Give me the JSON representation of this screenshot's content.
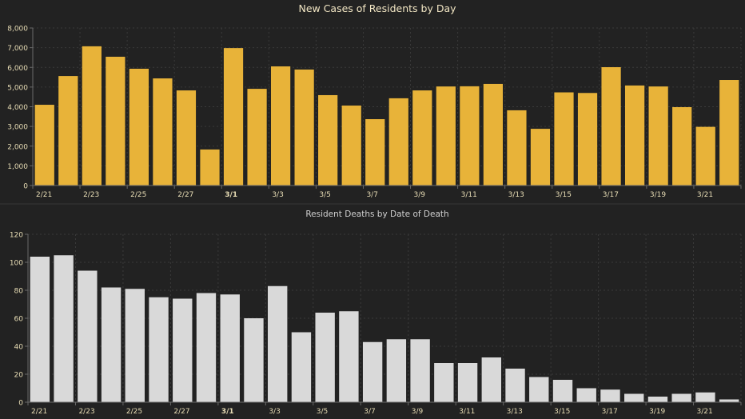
{
  "chart_data": [
    {
      "type": "bar",
      "title": "New Cases of Residents by Day",
      "xlabel": "",
      "ylabel": "",
      "ylim": [
        0,
        8000
      ],
      "yticks": [
        "0",
        "1,000",
        "2,000",
        "3,000",
        "4,000",
        "5,000",
        "6,000",
        "7,000",
        "8,000"
      ],
      "ytick_values": [
        0,
        1000,
        2000,
        3000,
        4000,
        5000,
        6000,
        7000,
        8000
      ],
      "grid": true,
      "bar_color": "#E8B339",
      "categories": [
        "2/21",
        "2/22",
        "2/23",
        "2/24",
        "2/25",
        "2/26",
        "2/27",
        "2/28",
        "3/1",
        "3/2",
        "3/3",
        "3/4",
        "3/5",
        "3/6",
        "3/7",
        "3/8",
        "3/9",
        "3/10",
        "3/11",
        "3/12",
        "3/13",
        "3/14",
        "3/15",
        "3/16",
        "3/17",
        "3/18",
        "3/19",
        "3/20",
        "3/21",
        "3/22"
      ],
      "xtick_labels": [
        "2/21",
        "",
        "2/23",
        "",
        "2/25",
        "",
        "2/27",
        "",
        "3/1",
        "",
        "3/3",
        "",
        "3/5",
        "",
        "3/7",
        "",
        "3/9",
        "",
        "3/11",
        "",
        "3/13",
        "",
        "3/15",
        "",
        "3/17",
        "",
        "3/19",
        "",
        "3/21",
        ""
      ],
      "values": [
        4100,
        5560,
        7070,
        6540,
        5930,
        5440,
        4830,
        1830,
        6980,
        4910,
        6050,
        5890,
        4590,
        4060,
        3370,
        4430,
        4830,
        5030,
        5040,
        5160,
        3820,
        2880,
        4730,
        4700,
        6010,
        5080,
        5030,
        3980,
        2980,
        5360
      ]
    },
    {
      "type": "bar",
      "title": "Resident Deaths by Date of Death",
      "xlabel": "",
      "ylabel": "",
      "ylim": [
        0,
        120
      ],
      "yticks": [
        "0",
        "20",
        "40",
        "60",
        "80",
        "100",
        "120"
      ],
      "ytick_values": [
        0,
        20,
        40,
        60,
        80,
        100,
        120
      ],
      "grid": true,
      "bar_color": "#D9D9D9",
      "categories": [
        "2/21",
        "2/22",
        "2/23",
        "2/24",
        "2/25",
        "2/26",
        "2/27",
        "2/28",
        "3/1",
        "3/2",
        "3/3",
        "3/4",
        "3/5",
        "3/6",
        "3/7",
        "3/8",
        "3/9",
        "3/10",
        "3/11",
        "3/12",
        "3/13",
        "3/14",
        "3/15",
        "3/16",
        "3/17",
        "3/18",
        "3/19",
        "3/20",
        "3/21",
        "3/22"
      ],
      "xtick_labels": [
        "2/21",
        "",
        "2/23",
        "",
        "2/25",
        "",
        "2/27",
        "",
        "3/1",
        "",
        "3/3",
        "",
        "3/5",
        "",
        "3/7",
        "",
        "3/9",
        "",
        "3/11",
        "",
        "3/13",
        "",
        "3/15",
        "",
        "3/17",
        "",
        "3/19",
        "",
        "3/21",
        ""
      ],
      "values": [
        104,
        105,
        94,
        82,
        81,
        75,
        74,
        78,
        77,
        60,
        83,
        50,
        64,
        65,
        43,
        45,
        45,
        28,
        28,
        32,
        24,
        18,
        16,
        10,
        9,
        6,
        4,
        6,
        7,
        2
      ]
    }
  ],
  "colors": {
    "background": "#222222",
    "title_top": "#F2E6C4",
    "title_bottom": "#D0D0D0",
    "tick_text": "#E8DDB5",
    "axis": "#6a6a6a",
    "grid": "#3a3a3a"
  }
}
